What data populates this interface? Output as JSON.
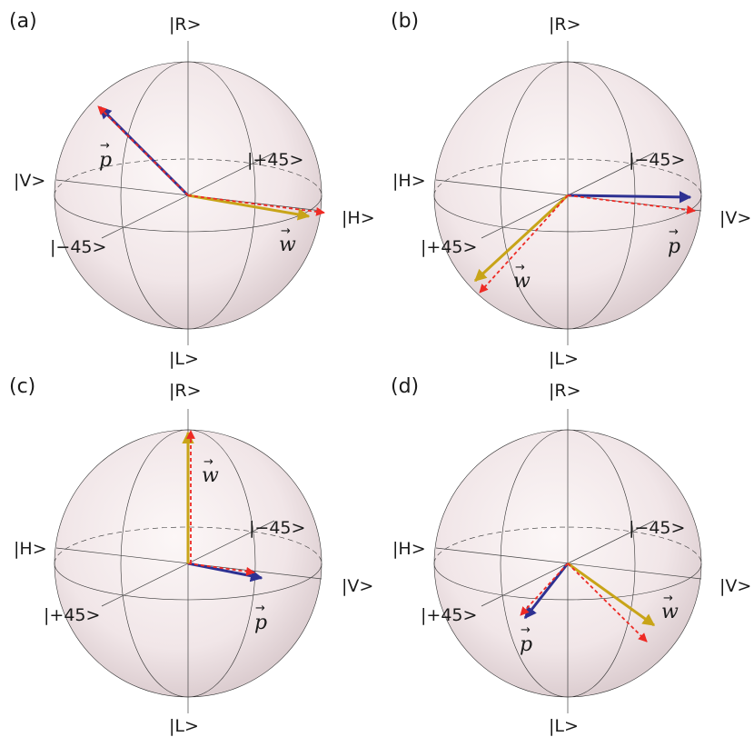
{
  "colors": {
    "sphere_center": "#fbf4f4",
    "sphere_edge": "#d9c8cb",
    "blue": "#2e3192",
    "red": "#ee2a24",
    "gold": "#c8a418"
  },
  "panels": [
    {
      "panel_label": "(a)",
      "top": "|R>",
      "bottom": "|L>",
      "left": "|V>",
      "right": "|H>",
      "front": "|−45>",
      "back": "|+45>",
      "p_label": "p",
      "w_label": "w"
    },
    {
      "panel_label": "(b)",
      "top": "|R>",
      "bottom": "|L>",
      "left": "|H>",
      "right": "|V>",
      "front": "|+45>",
      "back": "|−45>",
      "p_label": "p",
      "w_label": "w"
    },
    {
      "panel_label": "(c)",
      "top": "|R>",
      "bottom": "|L>",
      "left": "|H>",
      "right": "|V>",
      "front": "|+45>",
      "back": "|−45>",
      "p_label": "p",
      "w_label": "w"
    },
    {
      "panel_label": "(d)",
      "top": "|R>",
      "bottom": "|L>",
      "left": "|H>",
      "right": "|V>",
      "front": "|+45>",
      "back": "|−45>",
      "p_label": "p",
      "w_label": "w"
    }
  ]
}
